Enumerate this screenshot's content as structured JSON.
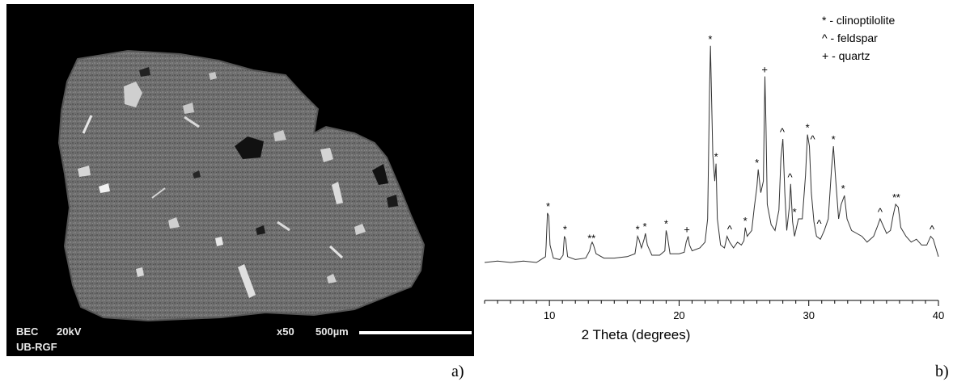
{
  "panel_a": {
    "instrument": "BEC",
    "voltage": "20kV",
    "magnification": "x50",
    "scale_label": "500µm",
    "lab": "UB-RGF",
    "panel_label": "a)"
  },
  "panel_b": {
    "panel_label": "b)"
  },
  "chart_data": {
    "type": "line",
    "title": "",
    "xlabel": "2 Theta (degrees)",
    "ylabel": "",
    "xlim": [
      5,
      40
    ],
    "x_ticks": [
      10,
      20,
      30,
      40
    ],
    "x_tick_labels": [
      "10",
      "20",
      "30",
      "40"
    ],
    "legend": {
      "placement": "top-right",
      "entries": [
        "* - clinoptilolite",
        "^ - feldspar",
        "+ - quartz"
      ]
    },
    "series": [
      {
        "values": [
          [
            5.0,
            0
          ],
          [
            6.0,
            1
          ],
          [
            7.0,
            0
          ],
          [
            8.0,
            1
          ],
          [
            9.0,
            0
          ],
          [
            9.7,
            4
          ],
          [
            9.75,
            12
          ],
          [
            9.85,
            34
          ],
          [
            9.95,
            32
          ],
          [
            10.05,
            12
          ],
          [
            10.3,
            3
          ],
          [
            10.8,
            2
          ],
          [
            11.05,
            5
          ],
          [
            11.15,
            18
          ],
          [
            11.25,
            16
          ],
          [
            11.4,
            4
          ],
          [
            12.0,
            2
          ],
          [
            12.8,
            3
          ],
          [
            13.1,
            8
          ],
          [
            13.2,
            12
          ],
          [
            13.3,
            14
          ],
          [
            13.4,
            12
          ],
          [
            13.6,
            6
          ],
          [
            14.2,
            3
          ],
          [
            15.0,
            3
          ],
          [
            16.0,
            4
          ],
          [
            16.6,
            6
          ],
          [
            16.8,
            18
          ],
          [
            16.9,
            16
          ],
          [
            17.1,
            10
          ],
          [
            17.3,
            16
          ],
          [
            17.4,
            20
          ],
          [
            17.55,
            12
          ],
          [
            17.9,
            5
          ],
          [
            18.5,
            5
          ],
          [
            18.9,
            8
          ],
          [
            19.0,
            22
          ],
          [
            19.1,
            18
          ],
          [
            19.3,
            6
          ],
          [
            20.0,
            6
          ],
          [
            20.4,
            7
          ],
          [
            20.55,
            14
          ],
          [
            20.7,
            18
          ],
          [
            20.8,
            12
          ],
          [
            21.0,
            8
          ],
          [
            21.6,
            10
          ],
          [
            22.0,
            14
          ],
          [
            22.2,
            30
          ],
          [
            22.35,
            120
          ],
          [
            22.42,
            149
          ],
          [
            22.5,
            115
          ],
          [
            22.6,
            74
          ],
          [
            22.75,
            56
          ],
          [
            22.85,
            68
          ],
          [
            22.95,
            30
          ],
          [
            23.2,
            12
          ],
          [
            23.5,
            10
          ],
          [
            23.7,
            18
          ],
          [
            23.9,
            14
          ],
          [
            24.2,
            10
          ],
          [
            24.5,
            14
          ],
          [
            24.8,
            12
          ],
          [
            25.0,
            15
          ],
          [
            25.1,
            24
          ],
          [
            25.25,
            18
          ],
          [
            25.6,
            22
          ],
          [
            25.8,
            38
          ],
          [
            26.0,
            52
          ],
          [
            26.1,
            64
          ],
          [
            26.3,
            48
          ],
          [
            26.5,
            56
          ],
          [
            26.62,
            128
          ],
          [
            26.7,
            95
          ],
          [
            26.8,
            40
          ],
          [
            27.1,
            26
          ],
          [
            27.4,
            22
          ],
          [
            27.7,
            36
          ],
          [
            27.85,
            72
          ],
          [
            28.0,
            85
          ],
          [
            28.15,
            48
          ],
          [
            28.3,
            22
          ],
          [
            28.5,
            38
          ],
          [
            28.6,
            54
          ],
          [
            28.75,
            28
          ],
          [
            28.9,
            18
          ],
          [
            29.2,
            30
          ],
          [
            29.5,
            30
          ],
          [
            29.75,
            60
          ],
          [
            29.9,
            88
          ],
          [
            30.05,
            80
          ],
          [
            30.2,
            48
          ],
          [
            30.4,
            28
          ],
          [
            30.6,
            18
          ],
          [
            30.9,
            16
          ],
          [
            31.2,
            22
          ],
          [
            31.5,
            30
          ],
          [
            31.75,
            64
          ],
          [
            31.9,
            80
          ],
          [
            32.05,
            60
          ],
          [
            32.3,
            30
          ],
          [
            32.5,
            40
          ],
          [
            32.75,
            46
          ],
          [
            32.95,
            30
          ],
          [
            33.3,
            22
          ],
          [
            33.7,
            20
          ],
          [
            34.1,
            18
          ],
          [
            34.5,
            14
          ],
          [
            35.0,
            18
          ],
          [
            35.3,
            25
          ],
          [
            35.5,
            30
          ],
          [
            35.8,
            24
          ],
          [
            36.0,
            20
          ],
          [
            36.3,
            22
          ],
          [
            36.5,
            32
          ],
          [
            36.7,
            40
          ],
          [
            36.9,
            38
          ],
          [
            37.1,
            24
          ],
          [
            37.5,
            18
          ],
          [
            37.9,
            14
          ],
          [
            38.3,
            16
          ],
          [
            38.7,
            12
          ],
          [
            39.1,
            12
          ],
          [
            39.4,
            18
          ],
          [
            39.6,
            16
          ],
          [
            39.8,
            10
          ],
          [
            40.0,
            4
          ]
        ]
      }
    ],
    "annotations": [
      {
        "x": 9.9,
        "y": 34,
        "symbol": "*"
      },
      {
        "x": 11.2,
        "y": 18,
        "symbol": "*"
      },
      {
        "x": 13.1,
        "y": 12,
        "symbol": "*"
      },
      {
        "x": 13.4,
        "y": 12,
        "symbol": "*"
      },
      {
        "x": 16.8,
        "y": 18,
        "symbol": "*"
      },
      {
        "x": 17.35,
        "y": 20,
        "symbol": "*"
      },
      {
        "x": 19.0,
        "y": 22,
        "symbol": "*"
      },
      {
        "x": 20.6,
        "y": 18,
        "symbol": "+"
      },
      {
        "x": 22.4,
        "y": 149,
        "symbol": "*"
      },
      {
        "x": 22.85,
        "y": 68,
        "symbol": "*"
      },
      {
        "x": 23.9,
        "y": 18,
        "symbol": "^"
      },
      {
        "x": 25.1,
        "y": 24,
        "symbol": "*"
      },
      {
        "x": 26.0,
        "y": 64,
        "symbol": "*"
      },
      {
        "x": 26.6,
        "y": 128,
        "symbol": "+"
      },
      {
        "x": 27.95,
        "y": 85,
        "symbol": "^"
      },
      {
        "x": 28.55,
        "y": 54,
        "symbol": "^"
      },
      {
        "x": 28.9,
        "y": 30,
        "symbol": "*"
      },
      {
        "x": 29.9,
        "y": 88,
        "symbol": "*"
      },
      {
        "x": 30.3,
        "y": 80,
        "symbol": "^"
      },
      {
        "x": 30.8,
        "y": 22,
        "symbol": "^"
      },
      {
        "x": 31.9,
        "y": 80,
        "symbol": "*"
      },
      {
        "x": 32.65,
        "y": 46,
        "symbol": "*"
      },
      {
        "x": 35.5,
        "y": 30,
        "symbol": "^"
      },
      {
        "x": 36.6,
        "y": 40,
        "symbol": "*"
      },
      {
        "x": 36.9,
        "y": 40,
        "symbol": "*"
      },
      {
        "x": 39.5,
        "y": 18,
        "symbol": "^"
      }
    ],
    "grid": false
  }
}
